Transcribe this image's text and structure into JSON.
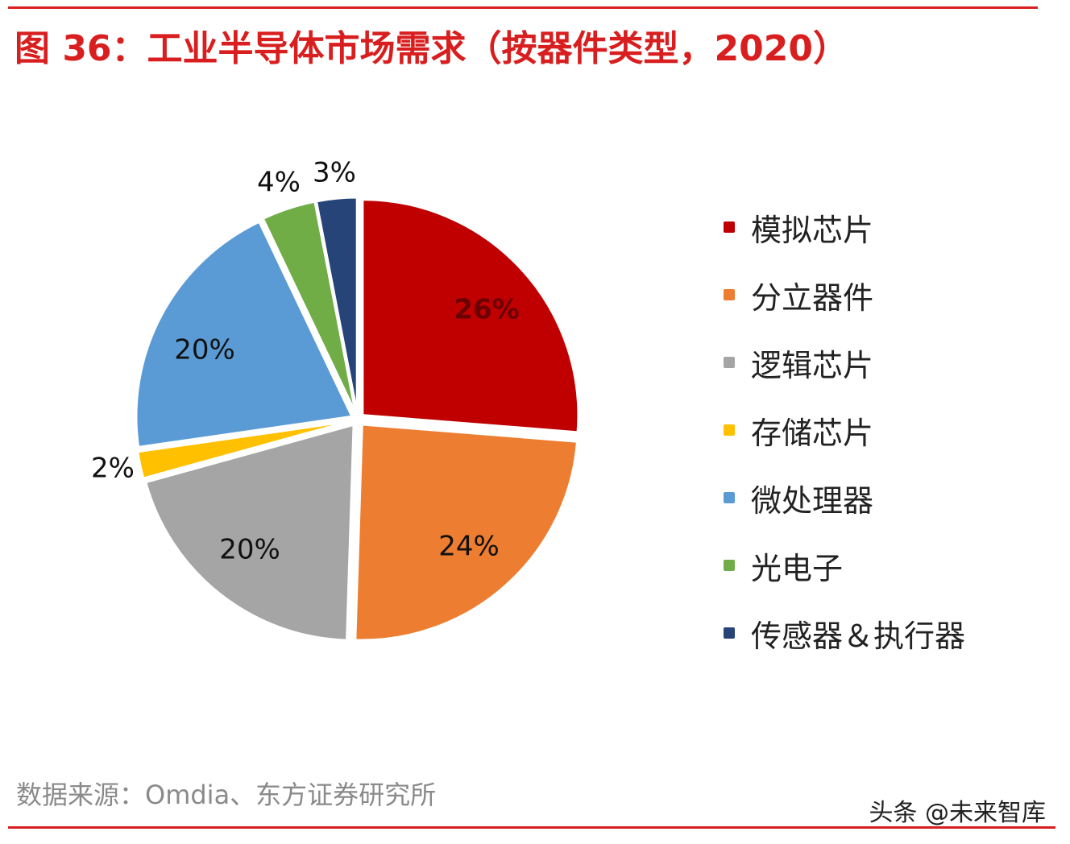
{
  "title": "图 36：工业半导体市场需求（按器件类型，2020）",
  "chart_data": {
    "type": "pie",
    "title": "图 36：工业半导体市场需求（按器件类型，2020）",
    "unit": "%",
    "legend_position": "right",
    "slices": [
      {
        "name": "模拟芯片",
        "value": 26,
        "label": "26%",
        "color": "#c00000",
        "label_color": "#6b0000",
        "label_bold": true
      },
      {
        "name": "分立器件",
        "value": 24,
        "label": "24%",
        "color": "#ed7d31",
        "label_color": "#111111",
        "label_bold": false
      },
      {
        "name": "逻辑芯片",
        "value": 20,
        "label": "20%",
        "color": "#a5a5a5",
        "label_color": "#111111",
        "label_bold": false
      },
      {
        "name": "存储芯片",
        "value": 2,
        "label": "2%",
        "color": "#ffc000",
        "label_color": "#111111",
        "label_bold": false
      },
      {
        "name": "微处理器",
        "value": 20,
        "label": "20%",
        "color": "#5b9bd5",
        "label_color": "#111111",
        "label_bold": false
      },
      {
        "name": "光电子",
        "value": 4,
        "label": "4%",
        "color": "#70ad47",
        "label_color": "#111111",
        "label_bold": false
      },
      {
        "name": "传感器＆执行器",
        "value": 3,
        "label": "3%",
        "color": "#264478",
        "label_color": "#111111",
        "label_bold": false
      }
    ]
  },
  "source": "数据来源：Omdia、东方证券研究所",
  "watermark": "头条 @未来智库",
  "colors": {
    "accent": "#d81e1e",
    "source_text": "#8a8a8a"
  }
}
